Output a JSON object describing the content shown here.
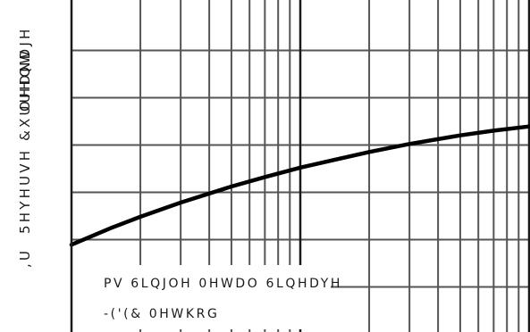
{
  "chart_data": {
    "type": "line",
    "title": "",
    "ylabel": "5HYHUVH &XUUHQW",
    "ylabel_overlap": "OHDNDJH",
    "ylabel_prefix": ",U",
    "xlabel": "",
    "x_scale": "log",
    "x_decades": 2,
    "y_gridlines": 7,
    "grid": true,
    "legend": "none",
    "annotations": [
      "PV 6LQJOH 0HWDO 6LQHDYH",
      "-('(& 0HWKRG"
    ],
    "series": [
      {
        "color": "#000000",
        "x": [
          1,
          1.5,
          2,
          3,
          5,
          7,
          10,
          20,
          30,
          50,
          70,
          100
        ],
        "y": [
          1.78,
          2.14,
          2.37,
          2.67,
          3.01,
          3.21,
          3.41,
          3.74,
          3.91,
          4.09,
          4.19,
          4.28
        ]
      }
    ]
  }
}
